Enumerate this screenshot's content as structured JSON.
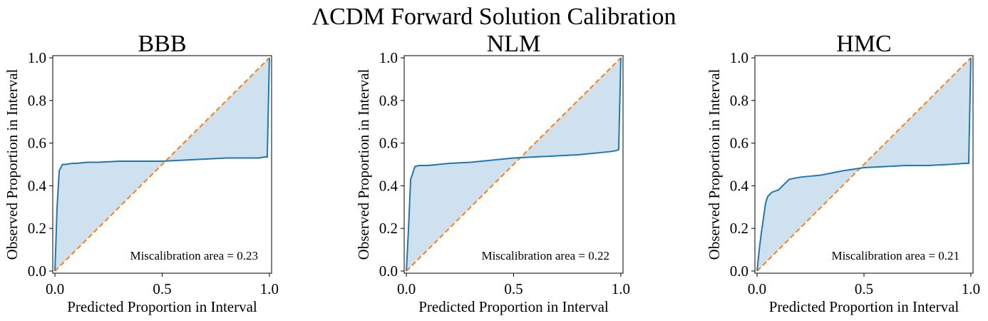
{
  "suptitle": "ΛCDM Forward Solution Calibration",
  "colors": {
    "curve": "#1f77b4",
    "fill": "#cfe1ef",
    "ideal": "#ff7f0e"
  },
  "chart_data": [
    {
      "type": "line",
      "title": "BBB",
      "xlabel": "Predicted Proportion in Interval",
      "ylabel": "Observed Proportion in Interval",
      "xlim": [
        0,
        1
      ],
      "ylim": [
        0,
        1
      ],
      "xticks": [
        "0.0",
        "0.5",
        "1.0"
      ],
      "yticks": [
        "0.0",
        "0.2",
        "0.4",
        "0.6",
        "0.8",
        "1.0"
      ],
      "grid": false,
      "annotation": "Miscalibration area = 0.23",
      "x": [
        0,
        0.01,
        0.02,
        0.035,
        0.05,
        0.08,
        0.1,
        0.15,
        0.2,
        0.3,
        0.4,
        0.5,
        0.6,
        0.7,
        0.8,
        0.9,
        0.95,
        0.98,
        0.99,
        1.0
      ],
      "y": [
        0,
        0.3,
        0.47,
        0.5,
        0.5,
        0.505,
        0.505,
        0.51,
        0.51,
        0.515,
        0.515,
        0.515,
        0.52,
        0.525,
        0.53,
        0.53,
        0.53,
        0.535,
        0.535,
        1.0
      ]
    },
    {
      "type": "line",
      "title": "NLM",
      "xlabel": "Predicted Proportion in Interval",
      "ylabel": "Observed Proportion in Interval",
      "xlim": [
        0,
        1
      ],
      "ylim": [
        0,
        1
      ],
      "xticks": [
        "0.0",
        "0.5",
        "1.0"
      ],
      "yticks": [
        "0.0",
        "0.2",
        "0.4",
        "0.6",
        "0.8",
        "1.0"
      ],
      "grid": false,
      "annotation": "Miscalibration area = 0.22",
      "x": [
        0,
        0.01,
        0.02,
        0.03,
        0.04,
        0.06,
        0.1,
        0.2,
        0.3,
        0.4,
        0.5,
        0.6,
        0.7,
        0.8,
        0.9,
        0.95,
        0.98,
        0.99,
        1.0
      ],
      "y": [
        0,
        0.2,
        0.43,
        0.46,
        0.49,
        0.495,
        0.495,
        0.505,
        0.51,
        0.52,
        0.53,
        0.535,
        0.54,
        0.545,
        0.555,
        0.56,
        0.565,
        0.57,
        1.0
      ]
    },
    {
      "type": "line",
      "title": "HMC",
      "xlabel": "Predicted Proportion in Interval",
      "ylabel": "Observed Proportion in Interval",
      "xlim": [
        0,
        1
      ],
      "ylim": [
        0,
        1
      ],
      "xticks": [
        "0.0",
        "0.5",
        "1.0"
      ],
      "yticks": [
        "0.0",
        "0.2",
        "0.4",
        "0.6",
        "0.8",
        "1.0"
      ],
      "grid": false,
      "annotation": "Miscalibration area = 0.21",
      "x": [
        0,
        0.01,
        0.02,
        0.03,
        0.04,
        0.05,
        0.07,
        0.1,
        0.12,
        0.15,
        0.2,
        0.25,
        0.3,
        0.35,
        0.4,
        0.5,
        0.6,
        0.7,
        0.8,
        0.9,
        0.97,
        0.99,
        1.0
      ],
      "y": [
        0,
        0.1,
        0.18,
        0.25,
        0.32,
        0.35,
        0.37,
        0.38,
        0.4,
        0.43,
        0.44,
        0.445,
        0.45,
        0.46,
        0.47,
        0.485,
        0.49,
        0.495,
        0.495,
        0.5,
        0.505,
        0.505,
        1.0
      ]
    }
  ]
}
